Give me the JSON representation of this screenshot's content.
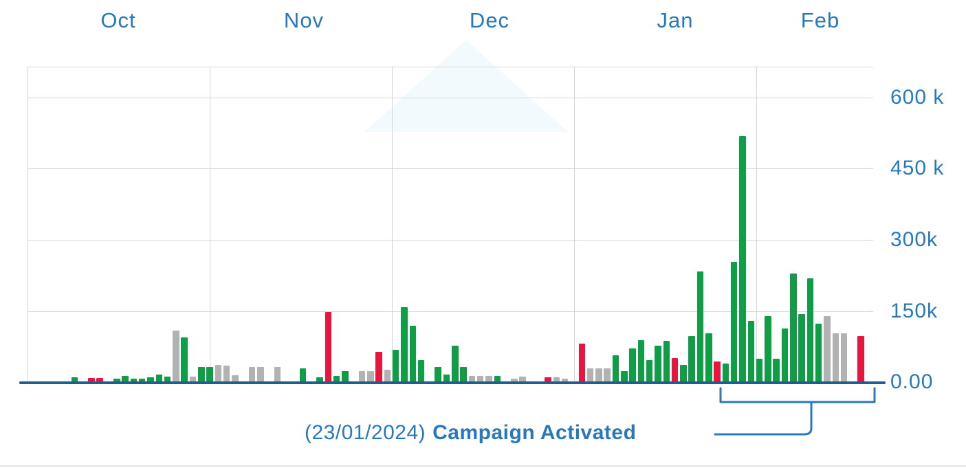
{
  "months": [
    "Oct",
    "Nov",
    "Dec",
    "Jan",
    "Feb"
  ],
  "y_axis": {
    "tick_labels": [
      "0.00",
      "150k",
      "300k",
      "450 k",
      "600 k"
    ]
  },
  "annotation": {
    "prefix": "(23/01/2024)",
    "text": "Campaign Activated"
  },
  "colors": {
    "green": "#0F9D45",
    "red": "#E5173F",
    "gray": "#B2B2B2",
    "blue": "#2878BE",
    "baseline": "#1F5C99",
    "grid": "#D6D6D6"
  },
  "chart_data": {
    "type": "bar",
    "title": "",
    "xlabel": "",
    "ylabel": "",
    "values_unit": "thousands",
    "x_labels": [
      "Oct",
      "Nov",
      "Dec",
      "Jan",
      "Feb"
    ],
    "ylim": [
      0,
      690
    ],
    "y_ticks": [
      0,
      150,
      300,
      450,
      600
    ],
    "legend": [
      "green",
      "red",
      "gray"
    ],
    "grid": true,
    "bars": [
      {
        "slot": 5,
        "value": 12,
        "color": "green"
      },
      {
        "slot": 7,
        "value": 10,
        "color": "red"
      },
      {
        "slot": 8,
        "value": 10,
        "color": "red"
      },
      {
        "slot": 10,
        "value": 8,
        "color": "green"
      },
      {
        "slot": 11,
        "value": 14,
        "color": "green"
      },
      {
        "slot": 12,
        "value": 9,
        "color": "green"
      },
      {
        "slot": 13,
        "value": 9,
        "color": "green"
      },
      {
        "slot": 14,
        "value": 12,
        "color": "green"
      },
      {
        "slot": 15,
        "value": 18,
        "color": "green"
      },
      {
        "slot": 16,
        "value": 13,
        "color": "green"
      },
      {
        "slot": 17,
        "value": 110,
        "color": "gray"
      },
      {
        "slot": 18,
        "value": 95,
        "color": "green"
      },
      {
        "slot": 19,
        "value": 13,
        "color": "gray"
      },
      {
        "slot": 20,
        "value": 33,
        "color": "green"
      },
      {
        "slot": 21,
        "value": 33,
        "color": "green"
      },
      {
        "slot": 22,
        "value": 38,
        "color": "gray"
      },
      {
        "slot": 23,
        "value": 36,
        "color": "gray"
      },
      {
        "slot": 24,
        "value": 16,
        "color": "gray"
      },
      {
        "slot": 26,
        "value": 33,
        "color": "gray"
      },
      {
        "slot": 27,
        "value": 33,
        "color": "gray"
      },
      {
        "slot": 29,
        "value": 33,
        "color": "gray"
      },
      {
        "slot": 32,
        "value": 30,
        "color": "green"
      },
      {
        "slot": 34,
        "value": 11,
        "color": "green"
      },
      {
        "slot": 35,
        "value": 150,
        "color": "red"
      },
      {
        "slot": 36,
        "value": 14,
        "color": "green"
      },
      {
        "slot": 37,
        "value": 24,
        "color": "green"
      },
      {
        "slot": 39,
        "value": 24,
        "color": "gray"
      },
      {
        "slot": 40,
        "value": 24,
        "color": "gray"
      },
      {
        "slot": 41,
        "value": 65,
        "color": "red"
      },
      {
        "slot": 42,
        "value": 28,
        "color": "gray"
      },
      {
        "slot": 43,
        "value": 70,
        "color": "green"
      },
      {
        "slot": 44,
        "value": 160,
        "color": "green"
      },
      {
        "slot": 45,
        "value": 120,
        "color": "green"
      },
      {
        "slot": 46,
        "value": 48,
        "color": "green"
      },
      {
        "slot": 48,
        "value": 33,
        "color": "green"
      },
      {
        "slot": 49,
        "value": 18,
        "color": "green"
      },
      {
        "slot": 50,
        "value": 78,
        "color": "green"
      },
      {
        "slot": 51,
        "value": 33,
        "color": "green"
      },
      {
        "slot": 52,
        "value": 14,
        "color": "gray"
      },
      {
        "slot": 53,
        "value": 14,
        "color": "gray"
      },
      {
        "slot": 54,
        "value": 14,
        "color": "gray"
      },
      {
        "slot": 55,
        "value": 14,
        "color": "green"
      },
      {
        "slot": 57,
        "value": 9,
        "color": "gray"
      },
      {
        "slot": 58,
        "value": 13,
        "color": "gray"
      },
      {
        "slot": 61,
        "value": 11,
        "color": "red"
      },
      {
        "slot": 62,
        "value": 11,
        "color": "gray"
      },
      {
        "slot": 63,
        "value": 9,
        "color": "gray"
      },
      {
        "slot": 65,
        "value": 82,
        "color": "red"
      },
      {
        "slot": 66,
        "value": 30,
        "color": "gray"
      },
      {
        "slot": 67,
        "value": 30,
        "color": "gray"
      },
      {
        "slot": 68,
        "value": 30,
        "color": "gray"
      },
      {
        "slot": 69,
        "value": 58,
        "color": "green"
      },
      {
        "slot": 70,
        "value": 24,
        "color": "green"
      },
      {
        "slot": 71,
        "value": 72,
        "color": "green"
      },
      {
        "slot": 72,
        "value": 90,
        "color": "green"
      },
      {
        "slot": 73,
        "value": 48,
        "color": "green"
      },
      {
        "slot": 74,
        "value": 78,
        "color": "green"
      },
      {
        "slot": 75,
        "value": 88,
        "color": "green"
      },
      {
        "slot": 76,
        "value": 52,
        "color": "red"
      },
      {
        "slot": 77,
        "value": 38,
        "color": "green"
      },
      {
        "slot": 78,
        "value": 98,
        "color": "green"
      },
      {
        "slot": 79,
        "value": 235,
        "color": "green"
      },
      {
        "slot": 80,
        "value": 105,
        "color": "green"
      },
      {
        "slot": 81,
        "value": 45,
        "color": "red"
      },
      {
        "slot": 82,
        "value": 40,
        "color": "green"
      },
      {
        "slot": 83,
        "value": 255,
        "color": "green"
      },
      {
        "slot": 84,
        "value": 520,
        "color": "green"
      },
      {
        "slot": 85,
        "value": 130,
        "color": "green"
      },
      {
        "slot": 86,
        "value": 50,
        "color": "green"
      },
      {
        "slot": 87,
        "value": 140,
        "color": "green"
      },
      {
        "slot": 88,
        "value": 50,
        "color": "green"
      },
      {
        "slot": 89,
        "value": 115,
        "color": "green"
      },
      {
        "slot": 90,
        "value": 230,
        "color": "green"
      },
      {
        "slot": 91,
        "value": 145,
        "color": "green"
      },
      {
        "slot": 92,
        "value": 220,
        "color": "green"
      },
      {
        "slot": 93,
        "value": 125,
        "color": "green"
      },
      {
        "slot": 94,
        "value": 140,
        "color": "gray"
      },
      {
        "slot": 95,
        "value": 105,
        "color": "gray"
      },
      {
        "slot": 96,
        "value": 105,
        "color": "gray"
      },
      {
        "slot": 98,
        "value": 98,
        "color": "red"
      }
    ]
  }
}
